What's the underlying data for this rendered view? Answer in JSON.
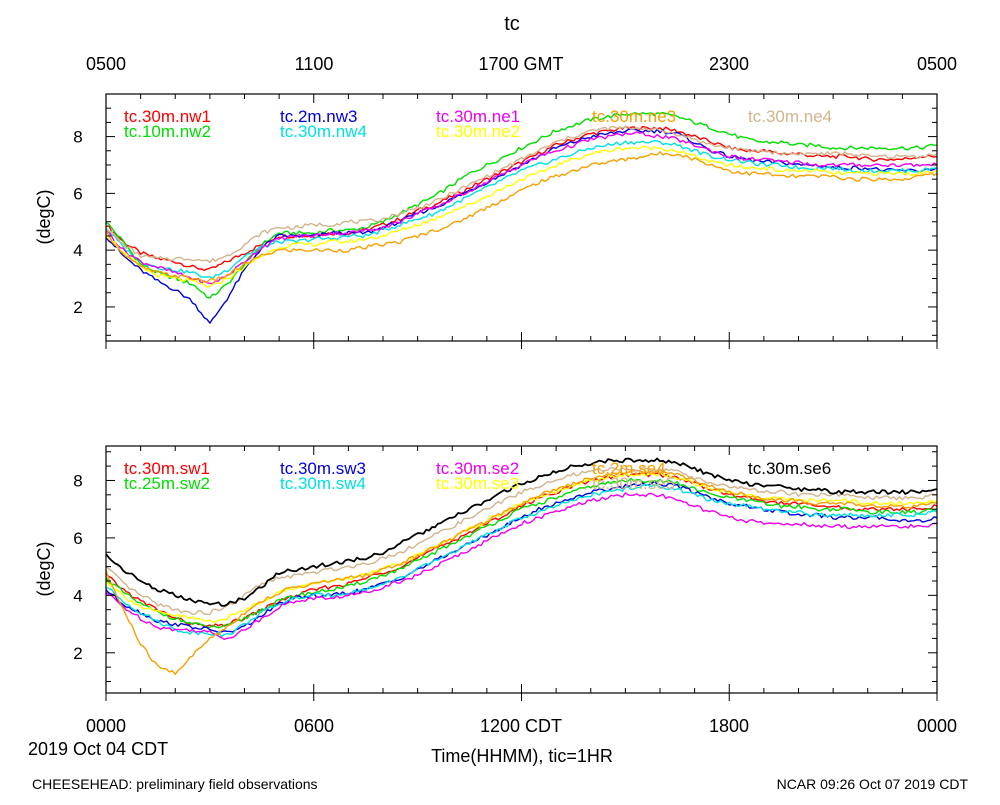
{
  "page": {
    "title": "tc",
    "top_axis_labels": [
      "0500",
      "1100",
      "1700 GMT",
      "2300",
      "0500"
    ],
    "bottom_axis_labels": [
      "0000",
      "0600",
      "1200 CDT",
      "1800",
      "0000"
    ],
    "date_label": "2019 Oct 04 CDT",
    "xlabel": "Time(HHMM), tic=1HR",
    "footer_left": "CHEESEHEAD: preliminary field observations",
    "footer_right": "NCAR 09:26 Oct 07 2019 CDT"
  },
  "chart_data": [
    {
      "type": "line",
      "ylabel": "(degC)",
      "ylim": [
        0.8,
        9.5
      ],
      "xlim": [
        0,
        24
      ],
      "yticks": [
        2,
        4,
        6,
        8
      ],
      "ytick_labels": [
        "2",
        "4",
        "6",
        "8"
      ],
      "x": [
        0,
        0.5,
        1,
        1.5,
        2,
        2.5,
        3,
        3.5,
        4,
        4.5,
        5,
        5.5,
        6,
        6.5,
        7,
        7.5,
        8,
        8.5,
        9,
        9.5,
        10,
        10.5,
        11,
        11.5,
        12,
        12.5,
        13,
        13.5,
        14,
        14.5,
        15,
        15.5,
        16,
        16.5,
        17,
        17.5,
        18,
        18.5,
        19,
        19.5,
        20,
        20.5,
        21,
        21.5,
        22,
        22.5,
        23,
        23.5,
        24
      ],
      "series": [
        {
          "name": "tc.30m.nw1",
          "color": "#ff0000",
          "values": [
            4.9,
            4.3,
            3.9,
            3.7,
            3.6,
            3.4,
            3.3,
            3.6,
            3.9,
            4.2,
            4.5,
            4.5,
            4.5,
            4.6,
            4.6,
            4.7,
            4.9,
            5.1,
            5.4,
            5.6,
            5.9,
            6.2,
            6.5,
            6.8,
            7.1,
            7.4,
            7.7,
            7.9,
            8.1,
            8.2,
            8.3,
            8.3,
            8.3,
            8.2,
            8.0,
            7.8,
            7.6,
            7.5,
            7.5,
            7.4,
            7.4,
            7.3,
            7.3,
            7.3,
            7.2,
            7.2,
            7.2,
            7.3,
            7.3
          ]
        },
        {
          "name": "tc.10m.nw2",
          "color": "#00dd00",
          "values": [
            5.0,
            4.3,
            3.5,
            3.2,
            3.0,
            2.8,
            2.3,
            2.8,
            3.5,
            4.2,
            4.6,
            4.6,
            4.6,
            4.7,
            4.7,
            4.8,
            5.0,
            5.3,
            5.6,
            5.9,
            6.3,
            6.7,
            7.0,
            7.3,
            7.6,
            7.9,
            8.2,
            8.4,
            8.6,
            8.7,
            8.8,
            8.8,
            8.8,
            8.7,
            8.5,
            8.3,
            8.1,
            7.9,
            7.8,
            7.8,
            7.7,
            7.7,
            7.6,
            7.6,
            7.6,
            7.6,
            7.6,
            7.6,
            7.7
          ]
        },
        {
          "name": "tc.2m.nw3",
          "color": "#0000dd",
          "values": [
            4.5,
            3.8,
            3.3,
            2.9,
            2.6,
            2.2,
            1.4,
            2.3,
            3.3,
            4.1,
            4.5,
            4.5,
            4.5,
            4.6,
            4.6,
            4.6,
            4.8,
            5.0,
            5.3,
            5.5,
            5.8,
            6.1,
            6.4,
            6.7,
            7.0,
            7.3,
            7.6,
            7.8,
            8.0,
            8.1,
            8.2,
            8.2,
            8.2,
            8.1,
            7.8,
            7.5,
            7.3,
            7.2,
            7.1,
            7.1,
            7.0,
            7.0,
            6.9,
            6.9,
            6.9,
            6.8,
            6.8,
            6.8,
            6.9
          ]
        },
        {
          "name": "tc.30m.nw4",
          "color": "#00e0e0",
          "values": [
            4.8,
            4.1,
            3.6,
            3.4,
            3.3,
            3.2,
            3.0,
            3.3,
            3.8,
            4.1,
            4.3,
            4.3,
            4.4,
            4.4,
            4.5,
            4.5,
            4.7,
            4.9,
            5.1,
            5.3,
            5.6,
            5.9,
            6.2,
            6.5,
            6.8,
            7.0,
            7.2,
            7.4,
            7.6,
            7.7,
            7.8,
            7.8,
            7.8,
            7.7,
            7.5,
            7.3,
            7.2,
            7.1,
            7.0,
            7.0,
            6.9,
            6.9,
            6.9,
            6.8,
            6.8,
            6.8,
            6.8,
            6.8,
            6.9
          ]
        },
        {
          "name": "tc.30m.ne1",
          "color": "#ee00ee",
          "values": [
            4.7,
            4.0,
            3.6,
            3.4,
            3.2,
            3.0,
            2.8,
            3.1,
            3.6,
            4.1,
            4.4,
            4.5,
            4.5,
            4.6,
            4.6,
            4.7,
            4.8,
            5.0,
            5.3,
            5.5,
            5.8,
            6.1,
            6.4,
            6.7,
            7.0,
            7.3,
            7.5,
            7.7,
            7.9,
            8.0,
            8.1,
            8.1,
            8.0,
            7.9,
            7.7,
            7.5,
            7.3,
            7.2,
            7.2,
            7.1,
            7.1,
            7.0,
            7.0,
            7.0,
            7.0,
            7.0,
            7.0,
            7.0,
            7.0
          ]
        },
        {
          "name": "tc.30m.ne2",
          "color": "#ffff00",
          "values": [
            4.6,
            3.9,
            3.4,
            3.1,
            3.0,
            2.9,
            2.7,
            3.0,
            3.4,
            3.8,
            4.1,
            4.2,
            4.2,
            4.3,
            4.3,
            4.4,
            4.5,
            4.7,
            4.9,
            5.1,
            5.4,
            5.6,
            5.9,
            6.2,
            6.5,
            6.7,
            7.0,
            7.2,
            7.4,
            7.5,
            7.6,
            7.6,
            7.6,
            7.5,
            7.3,
            7.1,
            7.0,
            6.9,
            6.9,
            6.8,
            6.8,
            6.8,
            6.7,
            6.7,
            6.7,
            6.7,
            6.7,
            6.7,
            6.8
          ]
        },
        {
          "name": "tc.30m.ne3",
          "color": "#f5a000",
          "values": [
            4.6,
            3.9,
            3.4,
            3.2,
            3.1,
            3.0,
            2.9,
            3.1,
            3.5,
            3.8,
            4.0,
            4.0,
            4.0,
            4.0,
            4.0,
            4.1,
            4.2,
            4.3,
            4.5,
            4.7,
            4.9,
            5.2,
            5.5,
            5.8,
            6.1,
            6.4,
            6.6,
            6.8,
            7.0,
            7.1,
            7.2,
            7.3,
            7.4,
            7.4,
            7.2,
            7.0,
            6.8,
            6.7,
            6.7,
            6.6,
            6.6,
            6.6,
            6.6,
            6.5,
            6.5,
            6.5,
            6.5,
            6.6,
            6.7
          ]
        },
        {
          "name": "tc.30m.ne4",
          "color": "#d2b48c",
          "values": [
            4.8,
            4.2,
            3.8,
            3.7,
            3.7,
            3.7,
            3.6,
            3.8,
            4.2,
            4.6,
            4.8,
            4.8,
            4.9,
            4.9,
            5.0,
            5.0,
            5.1,
            5.3,
            5.5,
            5.7,
            6.0,
            6.3,
            6.6,
            6.9,
            7.2,
            7.5,
            7.8,
            8.0,
            8.2,
            8.3,
            8.3,
            8.3,
            8.2,
            8.1,
            7.9,
            7.7,
            7.6,
            7.5,
            7.5,
            7.4,
            7.4,
            7.4,
            7.4,
            7.4,
            7.3,
            7.3,
            7.3,
            7.3,
            7.4
          ]
        }
      ]
    },
    {
      "type": "line",
      "ylabel": "(degC)",
      "ylim": [
        0.6,
        9.2
      ],
      "xlim": [
        0,
        24
      ],
      "yticks": [
        2,
        4,
        6,
        8
      ],
      "ytick_labels": [
        "2",
        "4",
        "6",
        "8"
      ],
      "x": [
        0,
        0.5,
        1,
        1.5,
        2,
        2.5,
        3,
        3.5,
        4,
        4.5,
        5,
        5.5,
        6,
        6.5,
        7,
        7.5,
        8,
        8.5,
        9,
        9.5,
        10,
        10.5,
        11,
        11.5,
        12,
        12.5,
        13,
        13.5,
        14,
        14.5,
        15,
        15.5,
        16,
        16.5,
        17,
        17.5,
        18,
        18.5,
        19,
        19.5,
        20,
        20.5,
        21,
        21.5,
        22,
        22.5,
        23,
        23.5,
        24
      ],
      "series": [
        {
          "name": "tc.30m.sw1",
          "color": "#ff0000",
          "values": [
            4.7,
            4.2,
            3.8,
            3.5,
            3.2,
            3.0,
            2.9,
            3.0,
            3.2,
            3.5,
            3.8,
            4.0,
            4.2,
            4.3,
            4.4,
            4.6,
            4.8,
            5.0,
            5.3,
            5.6,
            5.9,
            6.2,
            6.5,
            6.8,
            7.1,
            7.4,
            7.6,
            7.8,
            8.0,
            8.1,
            8.2,
            8.2,
            8.2,
            8.1,
            7.9,
            7.7,
            7.5,
            7.4,
            7.3,
            7.2,
            7.2,
            7.1,
            7.1,
            7.0,
            7.0,
            7.0,
            7.0,
            7.0,
            7.1
          ]
        },
        {
          "name": "tc.25m.sw2",
          "color": "#00dd00",
          "values": [
            4.6,
            4.1,
            3.7,
            3.4,
            3.2,
            3.0,
            2.9,
            2.9,
            3.2,
            3.5,
            3.8,
            4.0,
            4.1,
            4.2,
            4.3,
            4.5,
            4.7,
            4.9,
            5.2,
            5.5,
            5.8,
            6.1,
            6.4,
            6.7,
            7.0,
            7.2,
            7.4,
            7.6,
            7.8,
            7.9,
            8.0,
            8.0,
            8.0,
            7.9,
            7.7,
            7.5,
            7.4,
            7.3,
            7.2,
            7.1,
            7.1,
            7.0,
            7.0,
            7.0,
            6.9,
            6.9,
            6.9,
            6.9,
            7.0
          ]
        },
        {
          "name": "tc.30m.sw3",
          "color": "#0000dd",
          "values": [
            4.2,
            3.7,
            3.4,
            3.1,
            3.0,
            2.9,
            2.8,
            2.7,
            2.9,
            3.3,
            3.7,
            3.9,
            4.0,
            4.0,
            4.1,
            4.2,
            4.4,
            4.6,
            4.9,
            5.2,
            5.5,
            5.8,
            6.1,
            6.4,
            6.7,
            7.0,
            7.2,
            7.4,
            7.6,
            7.7,
            7.8,
            7.9,
            7.9,
            7.8,
            7.6,
            7.4,
            7.2,
            7.1,
            7.0,
            6.9,
            6.8,
            6.8,
            6.7,
            6.7,
            6.7,
            6.7,
            6.6,
            6.6,
            6.7
          ]
        },
        {
          "name": "tc.30m.sw4",
          "color": "#00e0e0",
          "values": [
            4.3,
            3.8,
            3.4,
            3.1,
            2.8,
            2.7,
            2.7,
            2.6,
            3.0,
            3.4,
            3.7,
            3.9,
            4.0,
            4.0,
            4.1,
            4.2,
            4.4,
            4.6,
            4.9,
            5.2,
            5.5,
            5.8,
            6.1,
            6.4,
            6.7,
            6.9,
            7.1,
            7.3,
            7.5,
            7.6,
            7.7,
            7.8,
            7.8,
            7.7,
            7.5,
            7.3,
            7.2,
            7.1,
            7.0,
            6.9,
            6.9,
            6.8,
            6.8,
            6.8,
            6.8,
            6.8,
            6.8,
            6.8,
            6.9
          ]
        },
        {
          "name": "tc.30m.se2",
          "color": "#ee00ee",
          "values": [
            4.1,
            3.6,
            3.2,
            2.9,
            2.8,
            2.8,
            2.7,
            2.5,
            2.8,
            3.2,
            3.6,
            3.8,
            3.9,
            3.9,
            4.0,
            4.1,
            4.3,
            4.5,
            4.7,
            5.0,
            5.3,
            5.6,
            5.9,
            6.2,
            6.5,
            6.7,
            6.9,
            7.1,
            7.3,
            7.4,
            7.5,
            7.5,
            7.5,
            7.3,
            7.1,
            6.9,
            6.7,
            6.6,
            6.5,
            6.5,
            6.5,
            6.4,
            6.4,
            6.4,
            6.4,
            6.4,
            6.4,
            6.4,
            6.5
          ]
        },
        {
          "name": "tc.30m.se3",
          "color": "#ffff00",
          "values": [
            4.5,
            4.0,
            3.6,
            3.4,
            3.3,
            3.2,
            3.1,
            3.2,
            3.5,
            3.8,
            4.1,
            4.3,
            4.4,
            4.5,
            4.6,
            4.7,
            4.9,
            5.1,
            5.4,
            5.7,
            6.0,
            6.3,
            6.6,
            6.9,
            7.2,
            7.4,
            7.6,
            7.8,
            8.0,
            8.1,
            8.2,
            8.2,
            8.2,
            8.1,
            7.9,
            7.7,
            7.6,
            7.5,
            7.4,
            7.4,
            7.3,
            7.3,
            7.3,
            7.3,
            7.2,
            7.2,
            7.2,
            7.2,
            7.3
          ]
        },
        {
          "name": "tc.2m.se4",
          "color": "#f5a000",
          "values": [
            4.8,
            3.5,
            2.3,
            1.5,
            1.3,
            1.9,
            2.5,
            2.9,
            3.4,
            3.8,
            4.1,
            4.3,
            4.4,
            4.5,
            4.6,
            4.7,
            4.9,
            5.1,
            5.4,
            5.7,
            6.0,
            6.3,
            6.6,
            6.9,
            7.2,
            7.5,
            7.7,
            7.9,
            8.1,
            8.2,
            8.3,
            8.3,
            8.3,
            8.2,
            8.0,
            7.8,
            7.6,
            7.5,
            7.4,
            7.3,
            7.3,
            7.2,
            7.2,
            7.2,
            7.1,
            7.1,
            7.1,
            7.1,
            7.2
          ]
        },
        {
          "name": "tc.30m.se5",
          "color": "#d2b48c",
          "values": [
            5.0,
            4.4,
            4.0,
            3.7,
            3.5,
            3.4,
            3.4,
            3.6,
            4.0,
            4.4,
            4.6,
            4.7,
            4.8,
            4.9,
            5.0,
            5.1,
            5.3,
            5.5,
            5.8,
            6.1,
            6.4,
            6.7,
            7.0,
            7.3,
            7.6,
            7.8,
            8.0,
            8.2,
            8.3,
            8.4,
            8.4,
            8.4,
            8.4,
            8.3,
            8.1,
            7.9,
            7.8,
            7.7,
            7.6,
            7.6,
            7.5,
            7.5,
            7.5,
            7.5,
            7.4,
            7.4,
            7.4,
            7.4,
            7.5
          ]
        },
        {
          "name": "tc.30m.se6",
          "color": "#000000",
          "values": [
            5.4,
            4.9,
            4.5,
            4.2,
            4.0,
            3.8,
            3.7,
            3.7,
            3.9,
            4.3,
            4.8,
            4.9,
            5.0,
            5.1,
            5.2,
            5.3,
            5.5,
            5.8,
            6.1,
            6.4,
            6.7,
            7.0,
            7.3,
            7.6,
            7.9,
            8.1,
            8.3,
            8.5,
            8.6,
            8.7,
            8.7,
            8.7,
            8.7,
            8.6,
            8.4,
            8.2,
            8.0,
            7.9,
            7.8,
            7.8,
            7.7,
            7.7,
            7.6,
            7.6,
            7.6,
            7.6,
            7.6,
            7.6,
            7.7
          ]
        }
      ]
    }
  ]
}
